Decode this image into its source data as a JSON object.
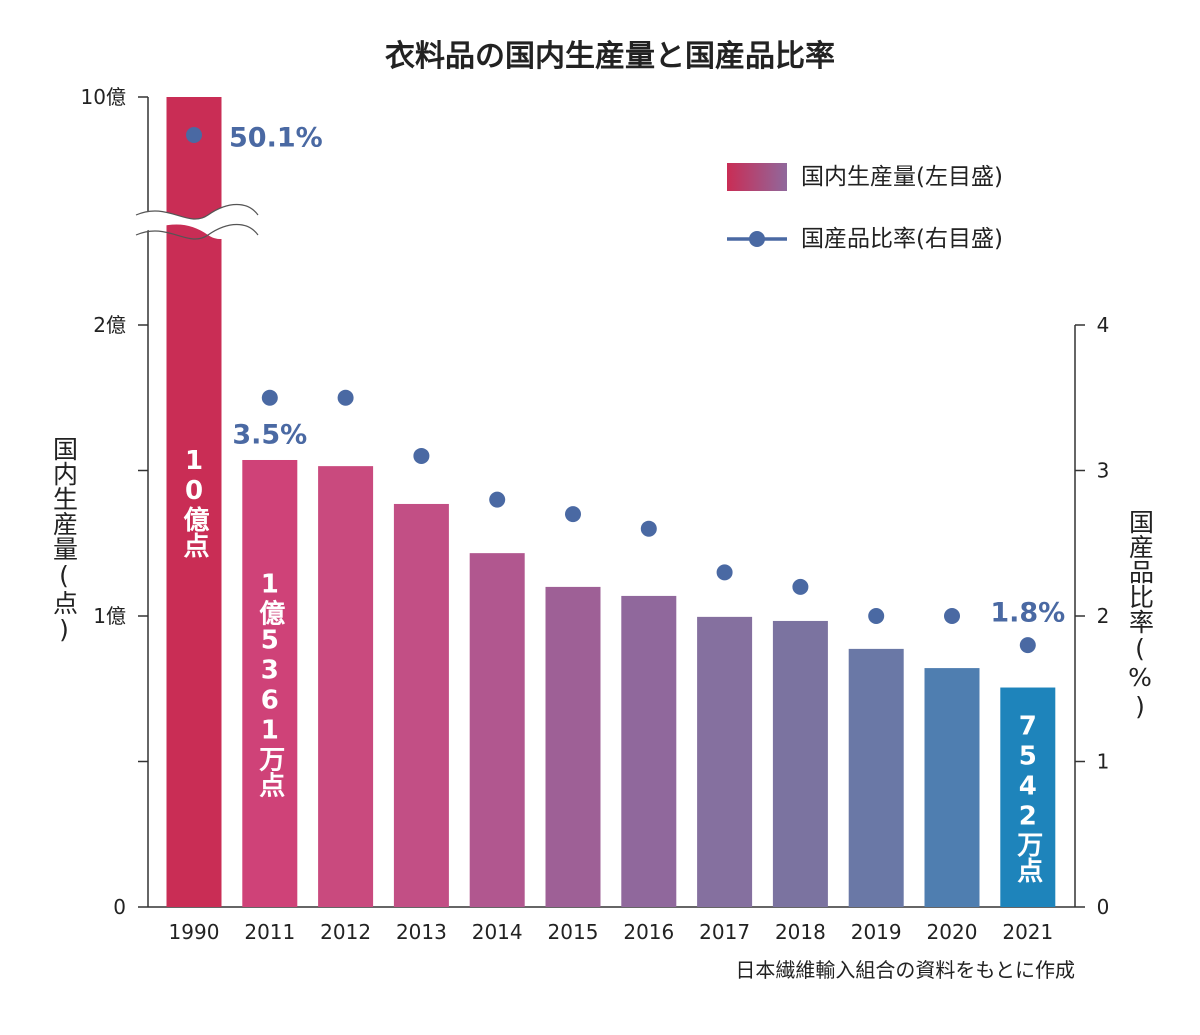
{
  "chart_data": {
    "type": "combo",
    "title": "衣料品の国内生産量と国産品比率",
    "categories": [
      "1990",
      "2011",
      "2012",
      "2013",
      "2014",
      "2015",
      "2016",
      "2017",
      "2018",
      "2019",
      "2020",
      "2021"
    ],
    "ylabel": "国内生産量(点)",
    "y2label": "国産品比率(%)",
    "ylim": [
      0,
      1000000000
    ],
    "yticks": [
      0,
      {
        "value": 50000000,
        "label": null
      },
      {
        "value": 100000000,
        "label": "1億"
      },
      {
        "value": 150000000,
        "label": null
      },
      {
        "value": 200000000,
        "label": "2億"
      },
      {
        "value": 1000000000,
        "label": "10億"
      }
    ],
    "axis_break": true,
    "y2lim": [
      0,
      4
    ],
    "y2ticks": [
      0,
      1,
      2,
      3,
      4
    ],
    "legend": "upper right",
    "series": [
      {
        "name": "国内生産量(左目盛)",
        "type": "bar",
        "colors": [
          "#c92d55",
          "#cf4278",
          "#c94a7e",
          "#c24f85",
          "#b1578f",
          "#9e6096",
          "#90689c",
          "#85709f",
          "#7b73a0",
          "#6a78a6",
          "#4f7eb0",
          "#1e84bb"
        ],
        "values": [
          1000000000,
          153610000,
          151500000,
          138500000,
          121600000,
          110000000,
          106900000,
          99700000,
          98300000,
          88700000,
          82100000,
          75420000
        ],
        "value_labels": [
          "10億点",
          "1億5361万点",
          null,
          null,
          null,
          null,
          null,
          null,
          null,
          null,
          null,
          "7542万点"
        ]
      },
      {
        "name": "国産品比率(右目盛)",
        "type": "line",
        "axis": "y2",
        "color": "#4a69a3",
        "values": [
          50.1,
          3.5,
          3.5,
          3.1,
          2.8,
          2.7,
          2.6,
          2.3,
          2.2,
          2.0,
          2.0,
          1.8
        ],
        "value_labels": [
          "50.1%",
          "3.5%",
          null,
          null,
          null,
          null,
          null,
          null,
          null,
          null,
          null,
          "1.8%"
        ]
      }
    ],
    "source": "日本繊維輸入組合の資料をもとに作成"
  }
}
